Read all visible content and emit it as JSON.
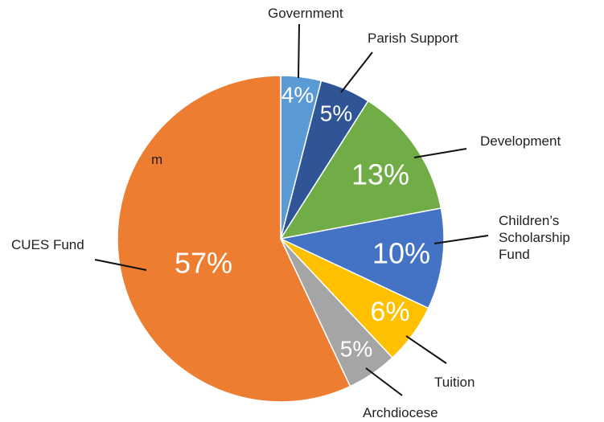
{
  "chart_data": {
    "type": "pie",
    "categories": [
      "Government",
      "Parish Support",
      "Development",
      "Children’s Scholarship Fund",
      "Tuition",
      "Archdiocese",
      "CUES Fund"
    ],
    "values": [
      4,
      5,
      13,
      10,
      6,
      5,
      57
    ],
    "value_labels": [
      "4%",
      "5%",
      "13%",
      "10%",
      "6%",
      "5%",
      "57%"
    ],
    "colors": [
      "#5b9bd5",
      "#2f5597",
      "#70ad47",
      "#4472c4",
      "#ffc000",
      "#a5a5a5",
      "#ed7d31"
    ],
    "annotation": "m"
  }
}
